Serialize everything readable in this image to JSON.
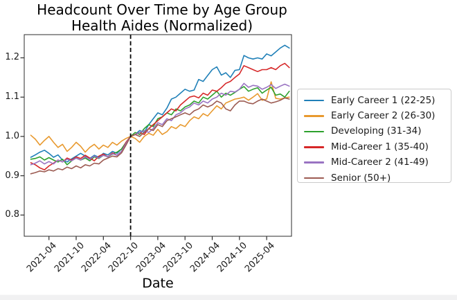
{
  "figure": {
    "title_line1": "Headcount Over Time by Age Group",
    "title_line2": "Health Aides (Normalized)"
  },
  "chart_data": {
    "type": "line",
    "title": "Headcount Over Time by Age Group — Health Aides (Normalized)",
    "xlabel": "Date",
    "ylabel": "",
    "grid": false,
    "legend_position": "outside-center-right",
    "ylim": [
      0.746,
      1.259
    ],
    "yticks": [
      "0.8",
      "0.9",
      "1.0",
      "1.1",
      "1.2"
    ],
    "xtick_labels": [
      "2021-04",
      "2021-10",
      "2022-04",
      "2022-10",
      "2023-04",
      "2023-10",
      "2024-04",
      "2024-10",
      "2025-04"
    ],
    "normalization_vline": "2022-10",
    "x": [
      "2020-12",
      "2021-01",
      "2021-02",
      "2021-03",
      "2021-04",
      "2021-05",
      "2021-06",
      "2021-07",
      "2021-08",
      "2021-09",
      "2021-10",
      "2021-11",
      "2021-12",
      "2022-01",
      "2022-02",
      "2022-03",
      "2022-04",
      "2022-05",
      "2022-06",
      "2022-07",
      "2022-08",
      "2022-09",
      "2022-10",
      "2022-11",
      "2022-12",
      "2023-01",
      "2023-02",
      "2023-03",
      "2023-04",
      "2023-05",
      "2023-06",
      "2023-07",
      "2023-08",
      "2023-09",
      "2023-10",
      "2023-11",
      "2023-12",
      "2024-01",
      "2024-02",
      "2024-03",
      "2024-04",
      "2024-05",
      "2024-06",
      "2024-07",
      "2024-08",
      "2024-09",
      "2024-10",
      "2024-11",
      "2024-12",
      "2025-01",
      "2025-02",
      "2025-03",
      "2025-04",
      "2025-05",
      "2025-06",
      "2025-07",
      "2025-08",
      "2025-09"
    ],
    "series": [
      {
        "name": "Early Career 1 (22-25)",
        "color": "#2080b8",
        "values": [
          0.947,
          0.953,
          0.96,
          0.965,
          0.957,
          0.947,
          0.953,
          0.94,
          0.935,
          0.943,
          0.95,
          0.957,
          0.95,
          0.944,
          0.952,
          0.947,
          0.957,
          0.953,
          0.962,
          0.957,
          0.968,
          0.984,
          1.0,
          1.005,
          1.015,
          1.01,
          1.03,
          1.045,
          1.06,
          1.055,
          1.072,
          1.095,
          1.1,
          1.11,
          1.12,
          1.115,
          1.118,
          1.145,
          1.14,
          1.155,
          1.17,
          1.177,
          1.156,
          1.162,
          1.15,
          1.168,
          1.17,
          1.206,
          1.2,
          1.197,
          1.2,
          1.197,
          1.21,
          1.205,
          1.215,
          1.225,
          1.232,
          1.225
        ]
      },
      {
        "name": "Early Career 2 (26-30)",
        "color": "#e8992e",
        "values": [
          1.003,
          0.993,
          0.978,
          0.99,
          1.0,
          0.985,
          0.972,
          0.98,
          0.962,
          0.972,
          0.985,
          0.975,
          0.96,
          0.972,
          0.98,
          0.968,
          0.978,
          0.972,
          0.985,
          0.978,
          0.988,
          0.995,
          1.0,
          0.995,
          0.985,
          1.0,
          1.008,
          1.003,
          1.018,
          1.005,
          1.012,
          1.025,
          1.02,
          1.03,
          1.025,
          1.04,
          1.05,
          1.045,
          1.058,
          1.052,
          1.065,
          1.078,
          1.07,
          1.085,
          1.09,
          1.095,
          1.097,
          1.1,
          1.092,
          1.1,
          1.109,
          1.092,
          1.095,
          1.139,
          1.097,
          1.095,
          1.098,
          1.1
        ]
      },
      {
        "name": "Developing (31-34)",
        "color": "#2ca02c",
        "values": [
          0.942,
          0.944,
          0.948,
          0.94,
          0.946,
          0.94,
          0.935,
          0.942,
          0.928,
          0.938,
          0.945,
          0.94,
          0.945,
          0.938,
          0.948,
          0.944,
          0.952,
          0.948,
          0.955,
          0.96,
          0.968,
          0.985,
          1.0,
          1.01,
          1.005,
          1.02,
          1.03,
          1.025,
          1.045,
          1.05,
          1.06,
          1.055,
          1.07,
          1.065,
          1.075,
          1.08,
          1.09,
          1.085,
          1.1,
          1.095,
          1.105,
          1.115,
          1.1,
          1.11,
          1.105,
          1.112,
          1.12,
          1.127,
          1.115,
          1.12,
          1.124,
          1.11,
          1.118,
          1.125,
          1.105,
          1.108,
          1.1,
          1.115
        ]
      },
      {
        "name": "Mid-Career 1 (35-40)",
        "color": "#d62728",
        "values": [
          0.933,
          0.928,
          0.92,
          0.915,
          0.925,
          0.932,
          0.94,
          0.935,
          0.945,
          0.94,
          0.948,
          0.944,
          0.952,
          0.945,
          0.938,
          0.95,
          0.955,
          0.948,
          0.958,
          0.952,
          0.962,
          0.985,
          1.0,
          1.005,
          1.01,
          1.005,
          1.02,
          1.03,
          1.04,
          1.05,
          1.06,
          1.07,
          1.065,
          1.08,
          1.09,
          1.1,
          1.103,
          1.098,
          1.11,
          1.105,
          1.118,
          1.115,
          1.124,
          1.135,
          1.14,
          1.15,
          1.159,
          1.18,
          1.175,
          1.17,
          1.165,
          1.17,
          1.17,
          1.175,
          1.17,
          1.18,
          1.186,
          1.175
        ]
      },
      {
        "name": "Mid-Career 2 (41-49)",
        "color": "#9973c2",
        "values": [
          0.928,
          0.932,
          0.938,
          0.93,
          0.936,
          0.93,
          0.94,
          0.935,
          0.942,
          0.938,
          0.945,
          0.94,
          0.948,
          0.942,
          0.95,
          0.945,
          0.952,
          0.948,
          0.956,
          0.952,
          0.962,
          0.982,
          1.0,
          1.005,
          1.01,
          1.015,
          1.01,
          1.02,
          1.035,
          1.03,
          1.045,
          1.04,
          1.055,
          1.06,
          1.07,
          1.075,
          1.085,
          1.08,
          1.09,
          1.085,
          1.095,
          1.1,
          1.11,
          1.105,
          1.115,
          1.113,
          1.12,
          1.135,
          1.125,
          1.13,
          1.128,
          1.12,
          1.125,
          1.132,
          1.122,
          1.128,
          1.133,
          1.128
        ]
      },
      {
        "name": "Senior (50+)",
        "color": "#9c5b52",
        "values": [
          0.905,
          0.908,
          0.912,
          0.91,
          0.915,
          0.912,
          0.918,
          0.915,
          0.922,
          0.918,
          0.925,
          0.92,
          0.928,
          0.925,
          0.932,
          0.93,
          0.94,
          0.945,
          0.95,
          0.948,
          0.958,
          0.978,
          1.0,
          1.005,
          1.0,
          1.01,
          1.02,
          1.015,
          1.03,
          1.025,
          1.04,
          1.045,
          1.05,
          1.055,
          1.06,
          1.055,
          1.065,
          1.07,
          1.08,
          1.075,
          1.08,
          1.09,
          1.085,
          1.07,
          1.065,
          1.08,
          1.09,
          1.09,
          1.085,
          1.083,
          1.09,
          1.095,
          1.09,
          1.085,
          1.088,
          1.092,
          1.098,
          1.095
        ]
      }
    ]
  }
}
